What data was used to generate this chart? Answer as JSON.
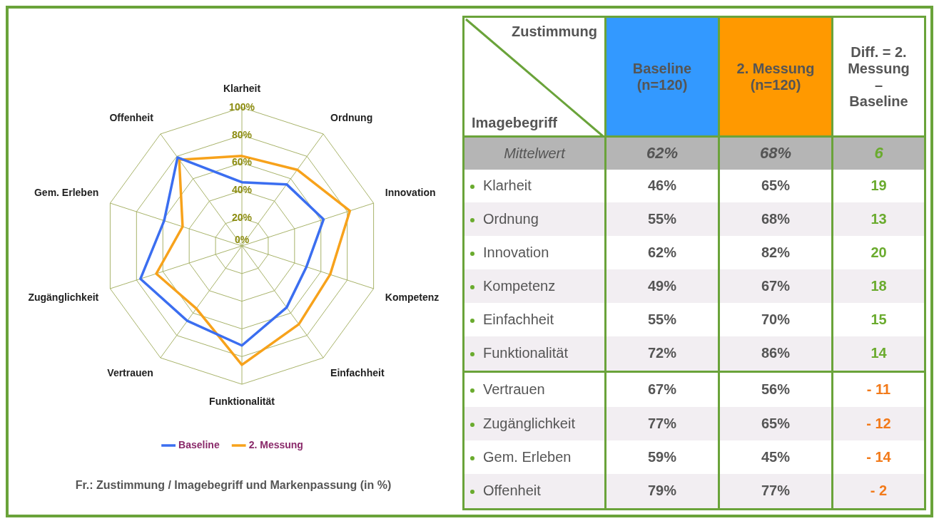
{
  "chart_data": {
    "type": "radar",
    "categories": [
      "Klarheit",
      "Ordnung",
      "Innovation",
      "Kompetenz",
      "Einfachheit",
      "Funktionalität",
      "Vertrauen",
      "Zugänglichkeit",
      "Gem. Erleben",
      "Offenheit"
    ],
    "series": [
      {
        "name": "Baseline",
        "color": "#3b6ef0",
        "values": [
          46,
          55,
          62,
          49,
          55,
          72,
          67,
          77,
          59,
          79
        ]
      },
      {
        "name": "2. Messung",
        "color": "#f7a21b",
        "values": [
          65,
          68,
          82,
          67,
          70,
          86,
          56,
          65,
          45,
          77
        ]
      }
    ],
    "ylim": [
      0,
      100
    ],
    "yticks": [
      {
        "value": 0,
        "label": "0%"
      },
      {
        "value": 20,
        "label": "20%"
      },
      {
        "value": 40,
        "label": "40%"
      },
      {
        "value": 60,
        "label": "60%"
      },
      {
        "value": 80,
        "label": "80%"
      },
      {
        "value": 100,
        "label": "100%"
      }
    ],
    "grid": true,
    "legend": "bottom",
    "marker": "none",
    "line_style": "solid",
    "annotations": [
      "Zustimmung",
      "Imagebegriff",
      "Baseline (n=120)",
      "2. Messung (n=120)",
      "Diff. = 2. Messung – Baseline",
      "Mittelwert",
      "62%",
      "68%",
      "6",
      "19",
      "13",
      "20",
      "18",
      "15",
      "14",
      "- 11",
      "- 12",
      "- 14",
      "- 2",
      "Fr.:  Zustimmung / Imagebegriff und Markenpassung (in %)",
      "46%",
      "55%",
      "62%",
      "49%",
      "55%",
      "72%",
      "67%",
      "77%",
      "59%",
      "79%",
      "65%",
      "68%",
      "82%",
      "67%",
      "70%",
      "86%",
      "56%",
      "65%",
      "45%",
      "77%"
    ]
  }
}
